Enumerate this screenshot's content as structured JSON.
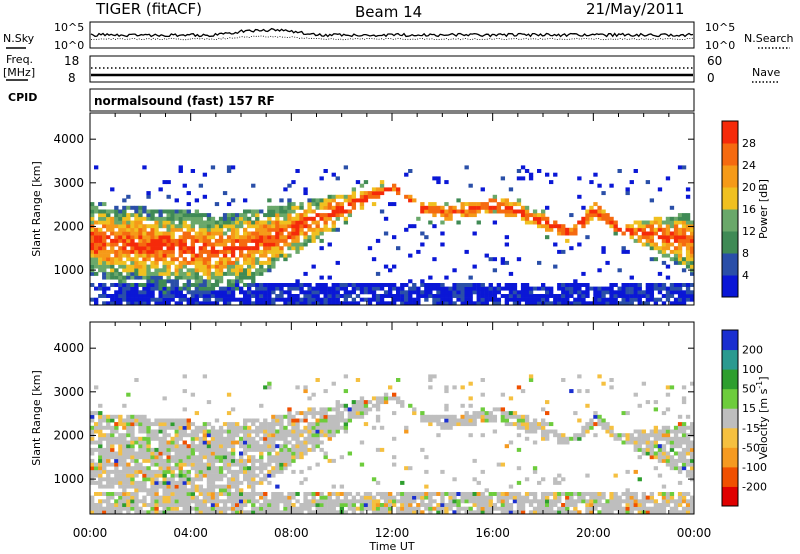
{
  "header": {
    "radar": "TIGER (fitACF)",
    "beam": "Beam 14",
    "date": "21/May/2011"
  },
  "panels": {
    "nsky_label": "N.Sky",
    "nsky_ticks": [
      "10^5",
      "10^0"
    ],
    "nsearch_label": "N.Search",
    "freq_label_1": "Freq.",
    "freq_label_2": "[MHz]",
    "freq_ticks": [
      "18",
      "8"
    ],
    "nave_label": "Nave",
    "nave_ticks": [
      "60",
      "0"
    ],
    "cpid_label": "CPID",
    "cpid_value": "normalsound (fast) 157 RF"
  },
  "colors": {
    "power": [
      "#0a17d6",
      "#2a4fa8",
      "#3f8a55",
      "#6aa86a",
      "#f0c020",
      "#f59a18",
      "#f56a10",
      "#f52a0a"
    ],
    "velocity": [
      "#e00000",
      "#f05000",
      "#f59a20",
      "#f5c040",
      "#bebebe",
      "#6dcc3c",
      "#2e9e2e",
      "#2a9a90",
      "#1a2fd0"
    ]
  },
  "chart_data": [
    {
      "type": "heatmap",
      "name": "power",
      "x_ticks": [
        "00:00",
        "04:00",
        "08:00",
        "12:00",
        "16:00",
        "20:00",
        "00:00"
      ],
      "x_range_hours": [
        0,
        24
      ],
      "y_ticks": [
        1000,
        2000,
        3000,
        4000
      ],
      "ylim": [
        200,
        4600
      ],
      "ylabel": "Slant Range [km]",
      "colorbar": {
        "label": "Power [dB]",
        "ticks": [
          4,
          8,
          12,
          16,
          20,
          24,
          28
        ],
        "range": [
          0,
          32
        ]
      },
      "echo_band_km": {
        "hours": [
          0.0,
          2.0,
          4.0,
          5.0,
          6.0,
          7.0,
          8.0,
          9.0,
          10.0,
          11.0,
          12.0,
          13.0,
          14.0,
          15.0,
          16.0,
          17.0,
          18.0,
          19.0,
          20.0,
          21.0,
          22.0,
          23.0,
          24.0
        ],
        "top": [
          2500,
          2400,
          2300,
          2200,
          2300,
          2400,
          2500,
          2600,
          2700,
          2800,
          2900,
          2500,
          2400,
          2500,
          2600,
          2500,
          2200,
          1900,
          2500,
          2000,
          2100,
          2200,
          2300
        ],
        "bottom": [
          800,
          700,
          600,
          600,
          700,
          900,
          1300,
          1700,
          2100,
          2500,
          2800,
          2300,
          2100,
          2200,
          2300,
          2100,
          1900,
          1700,
          2200,
          1800,
          1500,
          1200,
          900
        ]
      }
    },
    {
      "type": "heatmap",
      "name": "velocity",
      "x_ticks": [
        "00:00",
        "04:00",
        "08:00",
        "12:00",
        "16:00",
        "20:00",
        "00:00"
      ],
      "x_range_hours": [
        0,
        24
      ],
      "xlabel": "Time UT",
      "y_ticks": [
        1000,
        2000,
        3000,
        4000
      ],
      "ylim": [
        200,
        4600
      ],
      "ylabel": "Slant Range [km]",
      "colorbar": {
        "label": "Velocity [m s-1]",
        "ticks": [
          -200,
          -100,
          -50,
          -15,
          15,
          50,
          100,
          200
        ],
        "range": [
          -250,
          250
        ]
      }
    }
  ]
}
